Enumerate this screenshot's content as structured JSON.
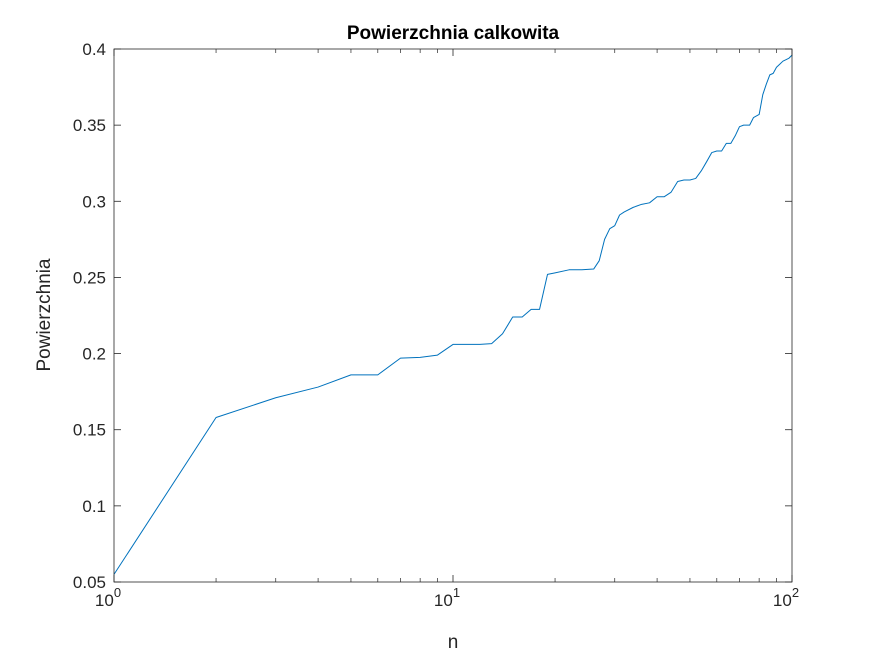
{
  "chart_data": {
    "type": "line",
    "title": "Powierzchnia calkowita",
    "xlabel": "n",
    "ylabel": "Powierzchnia",
    "xscale": "log",
    "xlim": [
      1,
      100
    ],
    "ylim": [
      0.05,
      0.4
    ],
    "grid": false,
    "box": true,
    "line_color": "#0072BD",
    "axis_color": "#262626",
    "xticks": [
      {
        "base": "10",
        "exp": "0",
        "value": 1
      },
      {
        "base": "10",
        "exp": "1",
        "value": 10
      },
      {
        "base": "10",
        "exp": "2",
        "value": 100
      }
    ],
    "yticks": [
      "0.05",
      "0.1",
      "0.15",
      "0.2",
      "0.25",
      "0.3",
      "0.35",
      "0.4"
    ],
    "series": [
      {
        "x": [
          1,
          2,
          3,
          4,
          5,
          6,
          7,
          8,
          9,
          10,
          11,
          12,
          13,
          14,
          15,
          16,
          17,
          18,
          19,
          20,
          22,
          24,
          26,
          27,
          28,
          29,
          30,
          31,
          32,
          34,
          36,
          38,
          40,
          42,
          44,
          46,
          48,
          50,
          52,
          54,
          56,
          58,
          60,
          62,
          64,
          66,
          68,
          70,
          72,
          75,
          77,
          80,
          82,
          84,
          86,
          88,
          90,
          92,
          94,
          96,
          98,
          100
        ],
        "y": [
          0.055,
          0.158,
          0.171,
          0.178,
          0.186,
          0.186,
          0.197,
          0.1975,
          0.199,
          0.206,
          0.206,
          0.206,
          0.2065,
          0.213,
          0.224,
          0.224,
          0.229,
          0.229,
          0.252,
          0.253,
          0.255,
          0.255,
          0.2555,
          0.261,
          0.275,
          0.282,
          0.284,
          0.291,
          0.293,
          0.296,
          0.298,
          0.299,
          0.303,
          0.303,
          0.306,
          0.313,
          0.314,
          0.314,
          0.315,
          0.32,
          0.326,
          0.332,
          0.333,
          0.333,
          0.338,
          0.338,
          0.343,
          0.349,
          0.35,
          0.35,
          0.355,
          0.357,
          0.37,
          0.377,
          0.383,
          0.384,
          0.388,
          0.39,
          0.392,
          0.393,
          0.394,
          0.396
        ]
      }
    ]
  }
}
